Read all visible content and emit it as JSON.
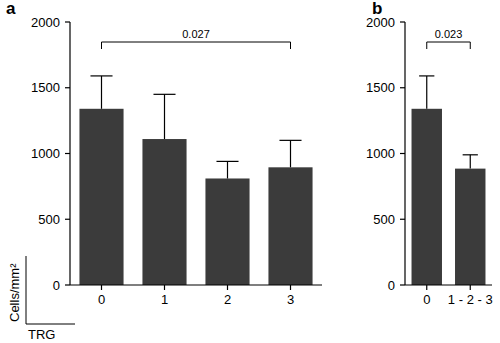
{
  "chart_data": [
    {
      "type": "bar",
      "title": "a",
      "categories": [
        "0",
        "1",
        "2",
        "3"
      ],
      "values": [
        1340,
        1110,
        810,
        895
      ],
      "errors": [
        250,
        340,
        130,
        205
      ],
      "color": "#3b3b3b",
      "ylim": [
        0,
        2000
      ],
      "yticks": [
        0,
        500,
        1000,
        1500,
        2000
      ],
      "y_label": "Cells/mm²",
      "x_label": "TRG",
      "annotations": [
        {
          "text": "0.027",
          "from": "0",
          "to": "3"
        }
      ]
    },
    {
      "type": "bar",
      "title": "b",
      "categories": [
        "0",
        "1 - 2 - 3"
      ],
      "values": [
        1340,
        885
      ],
      "errors": [
        250,
        105
      ],
      "color": "#3b3b3b",
      "ylim": [
        0,
        2000
      ],
      "yticks": [
        0,
        500,
        1000,
        1500,
        2000
      ],
      "annotations": [
        {
          "text": "0.023",
          "from": "0",
          "to": "1 - 2 - 3"
        }
      ]
    }
  ]
}
